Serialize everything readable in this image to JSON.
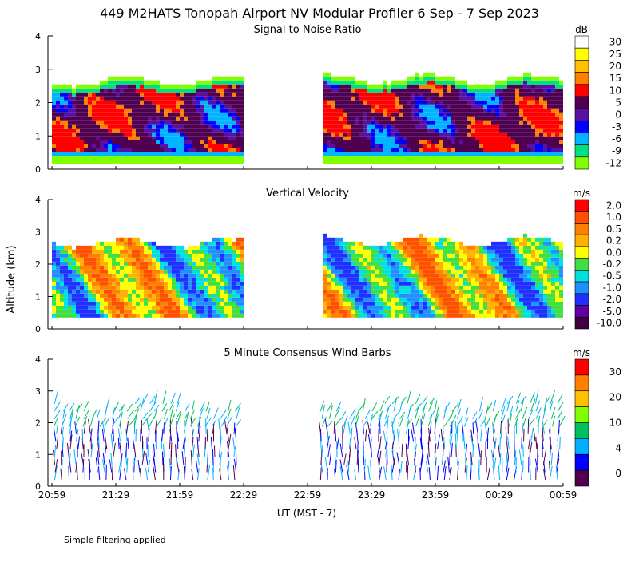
{
  "title": "449 M2HATS Tonopah Airport NV Modular Profiler  6 Sep -  7 Sep 2023",
  "y_axis_label": "Altitude (km)",
  "x_axis_label": "UT  (MST - 7)",
  "footnote": "Simple filtering applied",
  "chart_data": [
    {
      "type": "heatmap",
      "title": "Signal to Noise Ratio",
      "units": "dB",
      "x_ticks": [
        "20:59",
        "21:29",
        "21:59",
        "22:29",
        "22:59",
        "23:29",
        "23:59",
        "00:29",
        "00:59"
      ],
      "y_ticks": [
        "0",
        "1",
        "2",
        "3",
        "4"
      ],
      "ylim": [
        0,
        4
      ],
      "data_gap": [
        "22:29",
        "22:59"
      ],
      "colorbar": {
        "labels": [
          "30",
          "25",
          "20",
          "15",
          "10",
          "5",
          "0",
          "-3",
          "-6",
          "-9",
          "-12"
        ],
        "colors": [
          "#ffffff",
          "#ffff00",
          "#ffc000",
          "#ff8000",
          "#ff0000",
          "#500050",
          "#5a10a0",
          "#0000ff",
          "#00b4ff",
          "#00e080",
          "#80ff00"
        ]
      }
    },
    {
      "type": "heatmap",
      "title": "Vertical Velocity",
      "units": "m/s",
      "x_ticks": [
        "20:59",
        "21:29",
        "21:59",
        "22:29",
        "22:59",
        "23:29",
        "23:59",
        "00:29",
        "00:59"
      ],
      "y_ticks": [
        "0",
        "1",
        "2",
        "3",
        "4"
      ],
      "ylim": [
        0,
        4
      ],
      "data_gap": [
        "22:29",
        "22:59"
      ],
      "colorbar": {
        "labels": [
          "2.0",
          "1.0",
          "0.5",
          "0.2",
          "0.0",
          "-0.2",
          "-0.5",
          "-1.0",
          "-2.0",
          "-5.0",
          "-10.0"
        ],
        "colors": [
          "#ff0000",
          "#ff5000",
          "#ff8000",
          "#ffb000",
          "#ffff00",
          "#40e040",
          "#00e0e0",
          "#2090ff",
          "#2030ff",
          "#6000a0",
          "#400040"
        ]
      }
    },
    {
      "type": "scatter",
      "title": "5 Minute Consensus Wind Barbs",
      "units": "m/s",
      "x_ticks": [
        "20:59",
        "21:29",
        "21:59",
        "22:29",
        "22:59",
        "23:29",
        "23:59",
        "00:29",
        "00:59"
      ],
      "y_ticks": [
        "0",
        "1",
        "2",
        "3",
        "4"
      ],
      "ylim": [
        0,
        4
      ],
      "data_gap": [
        "22:29",
        "22:59"
      ],
      "colorbar": {
        "labels": [
          "30",
          "20",
          "10",
          "4",
          "0"
        ],
        "colors": [
          "#ff0000",
          "#ff8000",
          "#ffc000",
          "#80ff00",
          "#00c060",
          "#00b0ff",
          "#0000ff",
          "#500050"
        ]
      }
    }
  ]
}
